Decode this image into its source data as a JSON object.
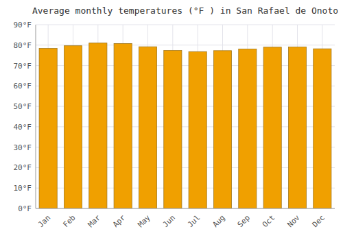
{
  "chart_data": {
    "type": "bar",
    "title": "Average monthly temperatures (°F ) in San Rafael de Onoto",
    "categories": [
      "Jan",
      "Feb",
      "Mar",
      "Apr",
      "May",
      "Jun",
      "Jul",
      "Aug",
      "Sep",
      "Oct",
      "Nov",
      "Dec"
    ],
    "values": [
      78.4,
      79.7,
      81.0,
      80.8,
      79.2,
      77.4,
      76.8,
      77.3,
      78.1,
      79.0,
      79.1,
      78.2
    ],
    "color": "#F0A000",
    "ylim": [
      0,
      90
    ],
    "yticks": [
      {
        "value": 0,
        "label": "0°F"
      },
      {
        "value": 10,
        "label": "10°F"
      },
      {
        "value": 20,
        "label": "20°F"
      },
      {
        "value": 30,
        "label": "30°F"
      },
      {
        "value": 40,
        "label": "40°F"
      },
      {
        "value": 50,
        "label": "50°F"
      },
      {
        "value": 60,
        "label": "60°F"
      },
      {
        "value": 70,
        "label": "70°F"
      },
      {
        "value": 80,
        "label": "80°F"
      },
      {
        "value": 90,
        "label": "90°F"
      }
    ],
    "grid": true
  }
}
